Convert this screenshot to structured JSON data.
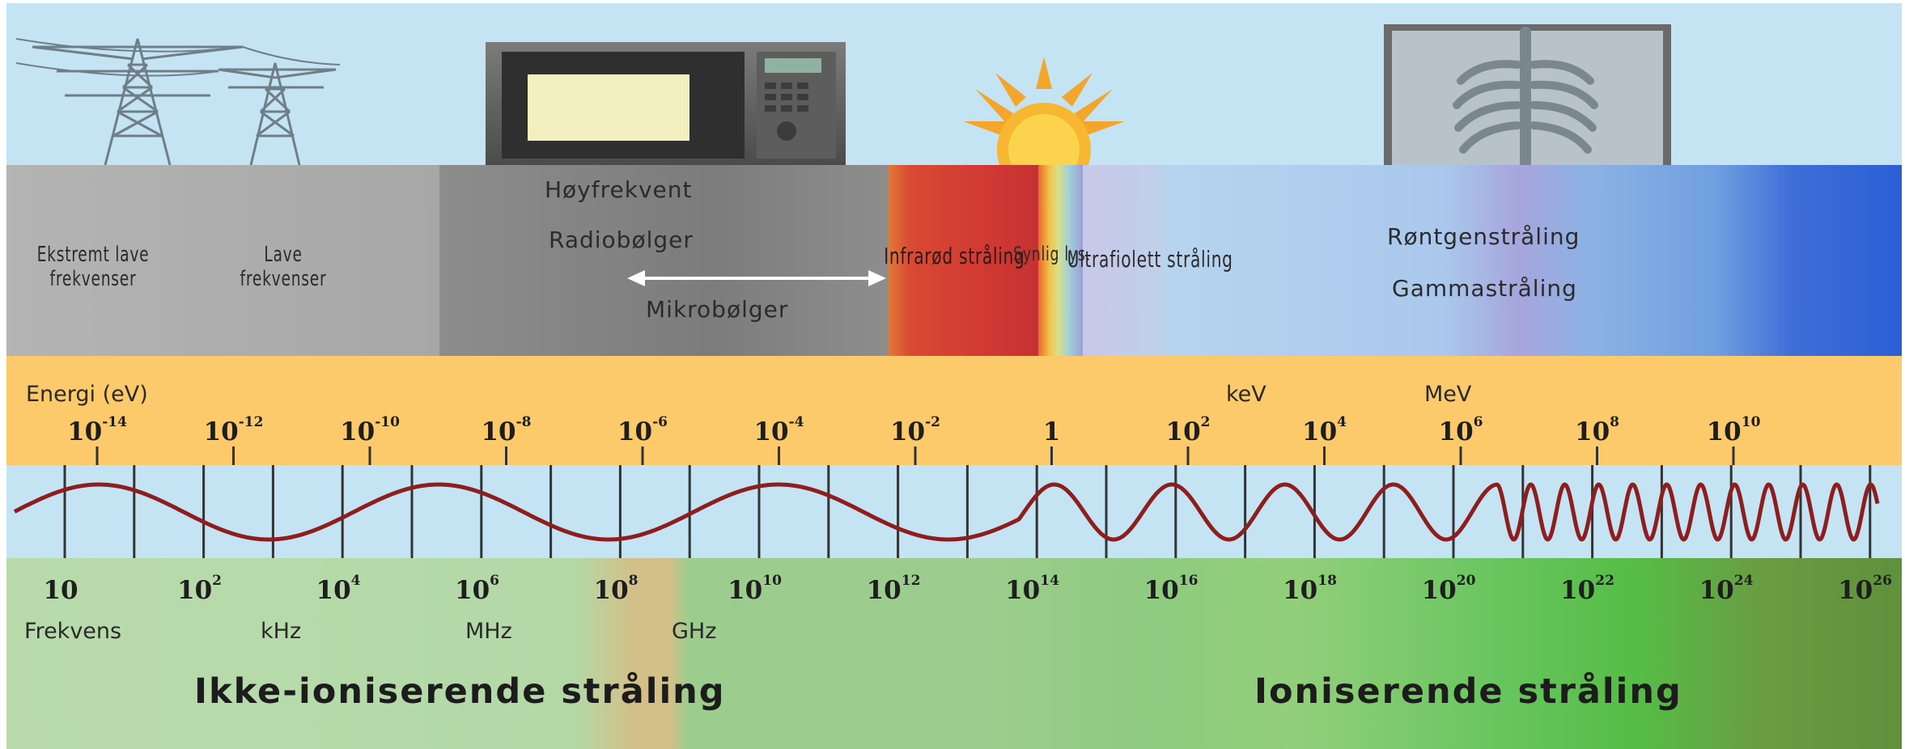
{
  "bands": {
    "extremely_low": "Ekstremt lave frekvenser",
    "low": "Lave frekvenser",
    "high_freq": "Høyfrekvent",
    "radio": "Radiobølger",
    "micro": "Mikrobølger",
    "infrared": "Infrarød stråling",
    "visible": "Synlig lys.",
    "ultraviolet": "Ultrafiolett stråling",
    "xray": "Røntgenstråling",
    "gamma": "Gammastråling"
  },
  "energy": {
    "label": "Energi (eV)",
    "kev": "keV",
    "mev": "MeV",
    "ticks": [
      {
        "base": "10",
        "exp": "-14"
      },
      {
        "base": "10",
        "exp": "-12"
      },
      {
        "base": "10",
        "exp": "-10"
      },
      {
        "base": "10",
        "exp": "-8"
      },
      {
        "base": "10",
        "exp": "-6"
      },
      {
        "base": "10",
        "exp": "-4"
      },
      {
        "base": "10",
        "exp": "-2"
      },
      {
        "base": "1",
        "exp": ""
      },
      {
        "base": "10",
        "exp": "2"
      },
      {
        "base": "10",
        "exp": "4"
      },
      {
        "base": "10",
        "exp": "6"
      },
      {
        "base": "10",
        "exp": "8"
      },
      {
        "base": "10",
        "exp": "10"
      }
    ]
  },
  "frequency": {
    "label": "Frekvens",
    "khz": "kHz",
    "mhz": "MHz",
    "ghz": "GHz",
    "ticks": [
      {
        "base": "10",
        "exp": ""
      },
      {
        "base": "10",
        "exp": "2"
      },
      {
        "base": "10",
        "exp": "4"
      },
      {
        "base": "10",
        "exp": "6"
      },
      {
        "base": "10",
        "exp": "8"
      },
      {
        "base": "10",
        "exp": "10"
      },
      {
        "base": "10",
        "exp": "12"
      },
      {
        "base": "10",
        "exp": "14"
      },
      {
        "base": "10",
        "exp": "16"
      },
      {
        "base": "10",
        "exp": "18"
      },
      {
        "base": "10",
        "exp": "20"
      },
      {
        "base": "10",
        "exp": "22"
      },
      {
        "base": "10",
        "exp": "24"
      },
      {
        "base": "10",
        "exp": "26"
      }
    ]
  },
  "regions": {
    "non_ionizing": "Ikke-ioniserende stråling",
    "ionizing": "Ioniserende stråling"
  },
  "icons": [
    "power-pylon-icon",
    "microwave-oven-icon",
    "sun-icon",
    "xray-image-icon"
  ]
}
